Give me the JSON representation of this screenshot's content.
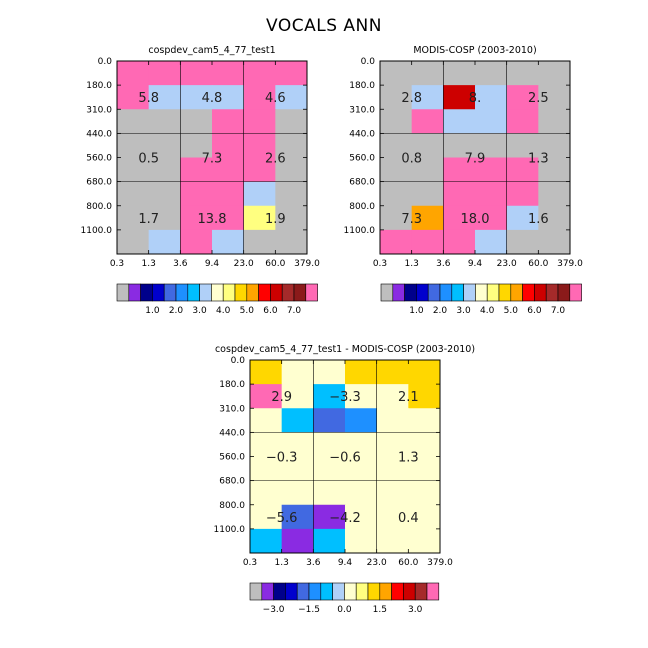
{
  "title": "VOCALS ANN",
  "chart_data": [
    {
      "type": "heatmap",
      "title": "cospdev_cam5_4_77_test1",
      "x_ticks": [
        "0.3",
        "1.3",
        "3.6",
        "9.4",
        "23.0",
        "60.0",
        "379.0"
      ],
      "y_ticks": [
        "0.0",
        "180.0",
        "310.0",
        "440.0",
        "560.0",
        "680.0",
        "800.0",
        "1100.0"
      ],
      "xlabel": "",
      "ylabel": "",
      "colorbar": "cb1",
      "grid": [
        [
          13,
          13,
          13,
          13,
          13,
          13
        ],
        [
          8,
          3,
          3,
          3,
          13,
          3
        ],
        [
          0,
          0,
          0,
          13,
          13,
          0
        ],
        [
          0,
          0,
          0,
          13,
          13,
          0
        ],
        [
          0,
          0,
          13,
          13,
          13,
          0
        ],
        [
          0,
          0,
          8,
          10,
          3,
          0
        ],
        [
          0,
          0,
          24,
          23,
          4,
          0
        ],
        [
          0,
          3,
          10,
          3,
          0,
          0
        ]
      ],
      "group_values": [
        [
          "5.8",
          "4.8",
          "4.6"
        ],
        [
          "0.5",
          "7.3",
          "2.6"
        ],
        [
          "1.7",
          "13.8",
          "1.9"
        ]
      ]
    },
    {
      "type": "heatmap",
      "title": "MODIS-COSP (2003-2010)",
      "x_ticks": [
        "0.3",
        "1.3",
        "3.6",
        "9.4",
        "23.0",
        "60.0",
        "379.0"
      ],
      "y_ticks": [
        "0.0",
        "180.0",
        "310.0",
        "440.0",
        "560.0",
        "680.0",
        "800.0",
        "1100.0"
      ],
      "xlabel": "",
      "ylabel": "",
      "colorbar": "cb1",
      "grid": [
        [
          0,
          0,
          0,
          0,
          0,
          0
        ],
        [
          0,
          3,
          6,
          3,
          13,
          0
        ],
        [
          0,
          13,
          3,
          3,
          13,
          0
        ],
        [
          0,
          0,
          0,
          0,
          0,
          0
        ],
        [
          0,
          0,
          13,
          13,
          13,
          0
        ],
        [
          0,
          0,
          8,
          10,
          13,
          0
        ],
        [
          0,
          5,
          35,
          28,
          3,
          0
        ],
        [
          13,
          18,
          11,
          3,
          0,
          0
        ]
      ],
      "group_values": [
        [
          "2.8",
          "8.",
          "2.5"
        ],
        [
          "0.8",
          "7.9",
          "1.3"
        ],
        [
          "7.3",
          "18.0",
          "1.6"
        ]
      ]
    },
    {
      "type": "heatmap",
      "title": "cospdev_cam5_4_77_test1 - MODIS-COSP (2003-2010)",
      "x_ticks": [
        "0.3",
        "1.3",
        "3.6",
        "9.4",
        "23.0",
        "60.0",
        "379.0"
      ],
      "y_ticks": [
        "0.0",
        "180.0",
        "310.0",
        "440.0",
        "560.0",
        "680.0",
        "800.0",
        "1100.0"
      ],
      "xlabel": "",
      "ylabel": "",
      "colorbar": "cb2",
      "grid": [
        [
          1.0,
          0.4,
          0.4,
          1.0,
          1.0,
          1.0
        ],
        [
          3.5,
          0.0,
          -1.0,
          0.0,
          0.4,
          1.0
        ],
        [
          0.4,
          -1.0,
          -2.0,
          -1.5,
          0.0,
          0.4
        ],
        [
          0.4,
          0.4,
          0.4,
          0.4,
          0.4,
          0.4
        ],
        [
          0.4,
          0.0,
          0.0,
          0.4,
          0.4,
          0.4
        ],
        [
          0.0,
          0.0,
          0.0,
          0.4,
          0.4,
          0.4
        ],
        [
          0.0,
          -2.0,
          -3.5,
          0.0,
          0.4,
          0.4
        ],
        [
          -1.0,
          -3.5,
          -1.0,
          0.0,
          0.0,
          0.0
        ]
      ],
      "group_values": [
        [
          "2.9",
          "-3.3",
          "2.1"
        ],
        [
          "-0.3",
          "-0.6",
          "1.3"
        ],
        [
          "-5.6",
          "-4.2",
          "0.4"
        ]
      ]
    }
  ],
  "colorbars": {
    "cb1": {
      "thresholds": [
        0.2,
        0.5,
        1.0,
        1.5,
        2.0,
        2.5,
        3.0,
        3.5,
        4.0,
        4.5,
        5.0,
        5.5,
        6.0,
        6.5,
        7.0,
        7.5
      ],
      "colors": [
        "#bebebe",
        "#8a2be2",
        "#00008b",
        "#0000cd",
        "#4169e1",
        "#1e90ff",
        "#00bfff",
        "#b0d0f8",
        "#ffffd0",
        "#ffff80",
        "#ffd700",
        "#ffa500",
        "#ff0000",
        "#cd0000",
        "#a52a2a",
        "#8b1a1a",
        "#ff69b4"
      ],
      "labels": [
        "1.0",
        "2.0",
        "3.0",
        "4.0",
        "5.0",
        "6.0",
        "7.0"
      ]
    },
    "cb2": {
      "thresholds": [
        -3.5,
        -3.0,
        -2.5,
        -2.0,
        -1.5,
        -1.0,
        -0.5,
        0.0,
        0.5,
        1.0,
        1.5,
        2.0,
        2.5,
        3.0,
        3.5
      ],
      "colors": [
        "#bebebe",
        "#8a2be2",
        "#00008b",
        "#0000cd",
        "#4169e1",
        "#1e90ff",
        "#00bfff",
        "#b0d0f8",
        "#ffffd0",
        "#ffff80",
        "#ffd700",
        "#ffa500",
        "#ff0000",
        "#cd0000",
        "#a52a2a",
        "#ff69b4"
      ],
      "labels": [
        "-3.0",
        "-1.5",
        "0.0",
        "1.5",
        "3.0"
      ]
    }
  }
}
